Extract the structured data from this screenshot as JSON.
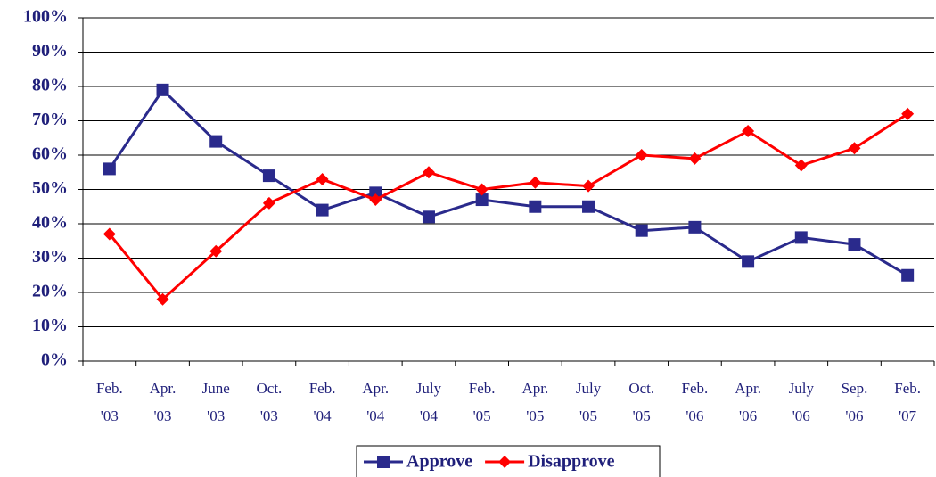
{
  "chart_data": {
    "type": "line",
    "categories": [
      "Feb. '03",
      "Apr. '03",
      "June '03",
      "Oct. '03",
      "Feb. '04",
      "Apr. '04",
      "July '04",
      "Feb. '05",
      "Apr. '05",
      "July '05",
      "Oct. '05",
      "Feb. '06",
      "Apr. '06",
      "July '06",
      "Sep. '06",
      "Feb. '07"
    ],
    "series": [
      {
        "name": "Approve",
        "color": "#2a2a8c",
        "marker": "square",
        "values": [
          56,
          79,
          64,
          54,
          44,
          49,
          42,
          47,
          45,
          45,
          38,
          39,
          29,
          36,
          34,
          25
        ]
      },
      {
        "name": "Disapprove",
        "color": "#ff0000",
        "marker": "diamond",
        "values": [
          37,
          18,
          32,
          46,
          53,
          47,
          55,
          50,
          52,
          51,
          60,
          59,
          67,
          57,
          62,
          72
        ]
      }
    ],
    "ylim": [
      0,
      100
    ],
    "yticks": [
      {
        "value": 0,
        "label": "0%"
      },
      {
        "value": 10,
        "label": "10%"
      },
      {
        "value": 20,
        "label": "20%"
      },
      {
        "value": 30,
        "label": "30%"
      },
      {
        "value": 40,
        "label": "40%"
      },
      {
        "value": 50,
        "label": "50%"
      },
      {
        "value": 60,
        "label": "60%"
      },
      {
        "value": 70,
        "label": "70%"
      },
      {
        "value": 80,
        "label": "80%"
      },
      {
        "value": 90,
        "label": "90%"
      },
      {
        "value": 100,
        "label": "100%"
      }
    ],
    "grid": true,
    "legend": "bottom"
  }
}
